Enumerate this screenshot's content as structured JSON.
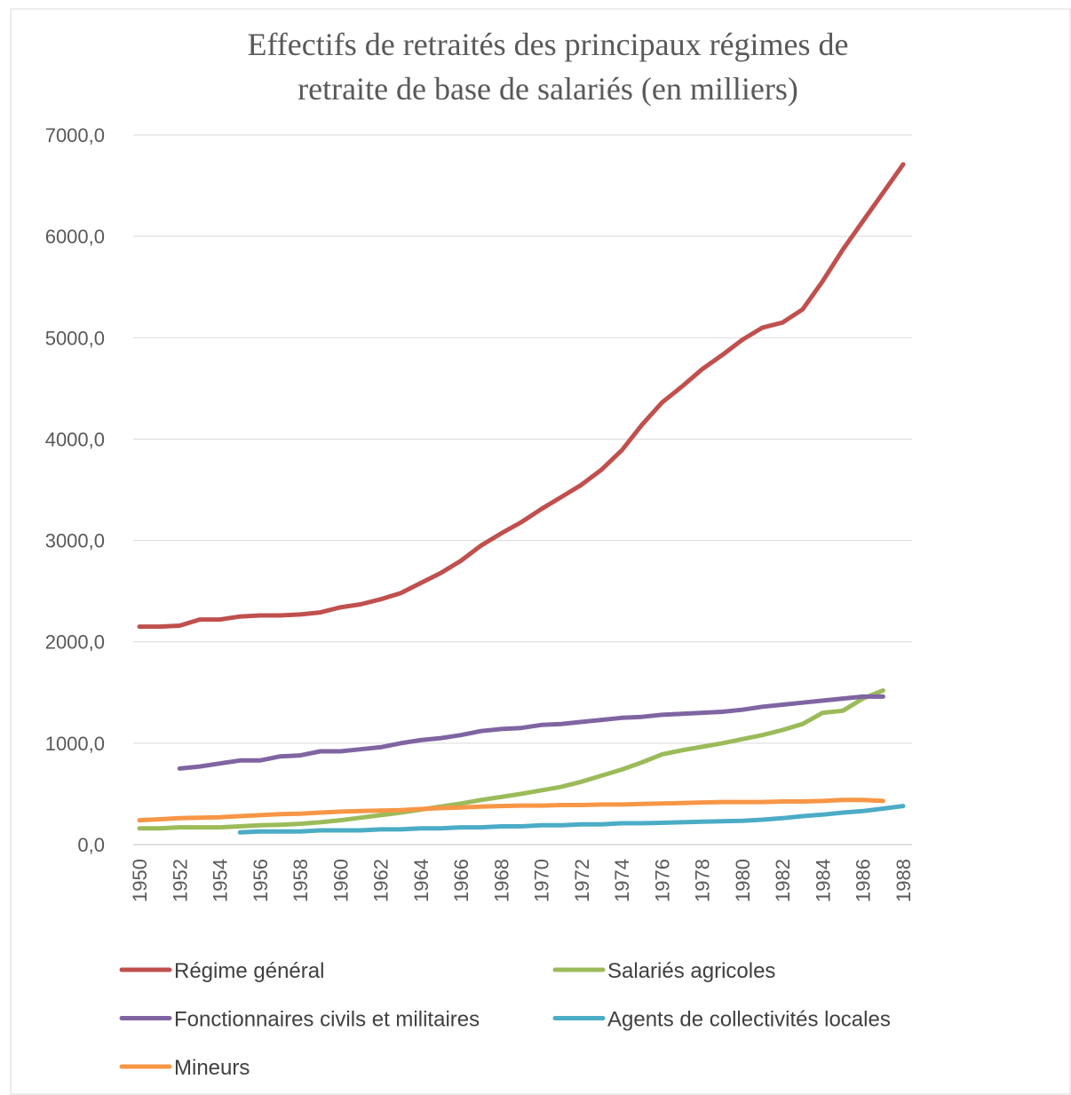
{
  "chart_data": {
    "type": "line",
    "title": [
      "Effectifs de retraités des principaux régimes de",
      "retraite de base de salariés (en milliers)"
    ],
    "x": [
      1950,
      1951,
      1952,
      1953,
      1954,
      1955,
      1956,
      1957,
      1958,
      1959,
      1960,
      1961,
      1962,
      1963,
      1964,
      1965,
      1966,
      1967,
      1968,
      1969,
      1970,
      1971,
      1972,
      1973,
      1974,
      1975,
      1976,
      1977,
      1978,
      1979,
      1980,
      1981,
      1982,
      1983,
      1984,
      1985,
      1986,
      1987,
      1988
    ],
    "xlim": [
      1950,
      1988
    ],
    "xticks": [
      1950,
      1952,
      1954,
      1956,
      1958,
      1960,
      1962,
      1964,
      1966,
      1968,
      1970,
      1972,
      1974,
      1976,
      1978,
      1980,
      1982,
      1984,
      1986,
      1988
    ],
    "ylim": [
      0,
      7000
    ],
    "yticks": [
      {
        "value": 0,
        "label": "0,0"
      },
      {
        "value": 1000,
        "label": "1000,0"
      },
      {
        "value": 2000,
        "label": "2000,0"
      },
      {
        "value": 3000,
        "label": "3000,0"
      },
      {
        "value": 4000,
        "label": "4000,0"
      },
      {
        "value": 5000,
        "label": "5000,0"
      },
      {
        "value": 6000,
        "label": "6000,0"
      },
      {
        "value": 7000,
        "label": "7000,0"
      }
    ],
    "grid": true,
    "legend": "bottom",
    "series": [
      {
        "name": "Régime général",
        "color": "#c0504d",
        "values": [
          2150,
          2150,
          2160,
          2220,
          2220,
          2250,
          2260,
          2260,
          2270,
          2290,
          2340,
          2370,
          2420,
          2480,
          2580,
          2680,
          2800,
          2950,
          3070,
          3180,
          3310,
          3430,
          3550,
          3700,
          3890,
          4140,
          4360,
          4520,
          4690,
          4830,
          4980,
          5100,
          5150,
          5280,
          5560,
          5870,
          6150,
          6430,
          6710
        ]
      },
      {
        "name": "Salariés agricoles",
        "color": "#9bbb59",
        "values": [
          160,
          160,
          170,
          170,
          170,
          180,
          190,
          195,
          205,
          220,
          240,
          265,
          290,
          315,
          345,
          375,
          405,
          440,
          470,
          500,
          535,
          570,
          620,
          680,
          740,
          810,
          890,
          930,
          965,
          1000,
          1040,
          1080,
          1130,
          1190,
          1300,
          1320,
          1440,
          1520,
          null
        ]
      },
      {
        "name": "Fonctionnaires civils et militaires",
        "color": "#8064a2",
        "values": [
          null,
          null,
          750,
          770,
          800,
          830,
          830,
          870,
          880,
          920,
          920,
          940,
          960,
          1000,
          1030,
          1050,
          1080,
          1120,
          1140,
          1150,
          1180,
          1190,
          1210,
          1230,
          1250,
          1260,
          1280,
          1290,
          1300,
          1310,
          1330,
          1360,
          1380,
          1400,
          1420,
          1440,
          1460,
          1460,
          null
        ]
      },
      {
        "name": "Agents de collectivités locales",
        "color": "#4bacc6",
        "values": [
          null,
          null,
          null,
          null,
          null,
          120,
          130,
          130,
          130,
          140,
          140,
          140,
          150,
          150,
          160,
          160,
          170,
          170,
          180,
          180,
          190,
          190,
          200,
          200,
          210,
          210,
          215,
          220,
          225,
          230,
          235,
          245,
          260,
          280,
          295,
          315,
          330,
          355,
          380
        ]
      },
      {
        "name": "Mineurs",
        "color": "#f79646",
        "values": [
          240,
          250,
          260,
          265,
          270,
          280,
          290,
          300,
          305,
          315,
          325,
          330,
          335,
          340,
          350,
          360,
          365,
          375,
          380,
          385,
          385,
          390,
          390,
          395,
          395,
          400,
          405,
          410,
          415,
          420,
          420,
          420,
          425,
          425,
          430,
          440,
          440,
          430,
          null
        ]
      }
    ]
  }
}
